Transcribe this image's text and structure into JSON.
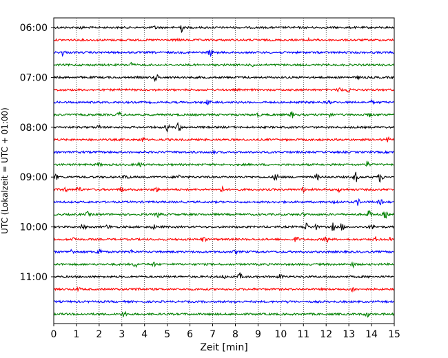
{
  "chart_data": {
    "type": "line",
    "xlabel": "Zeit  [min]",
    "ylabel": "UTC (Lokalzeit = UTC + 01:00)",
    "xlim": [
      0,
      15
    ],
    "x_ticks": [
      "0",
      "1",
      "2",
      "3",
      "4",
      "5",
      "6",
      "7",
      "8",
      "9",
      "10",
      "11",
      "12",
      "13",
      "14",
      "15"
    ],
    "y_ticks": [
      "06:00",
      "07:00",
      "08:00",
      "09:00",
      "10:00",
      "11:00"
    ],
    "grid": "vertical dotted at each minute",
    "trace_interval_min": 15,
    "colors": [
      "#000000",
      "#ff0000",
      "#0000ff",
      "#008000"
    ],
    "series": [
      {
        "start": "06:00",
        "events": [
          [
            5.6,
            7
          ],
          [
            4.5,
            2
          ],
          [
            1.2,
            1.5
          ]
        ]
      },
      {
        "start": "06:15",
        "events": [
          [
            11.2,
            1.5
          ],
          [
            5.5,
            1
          ]
        ]
      },
      {
        "start": "06:30",
        "events": [
          [
            0.4,
            4
          ],
          [
            6.9,
            5
          ]
        ]
      },
      {
        "start": "06:45",
        "events": [
          [
            3.4,
            3
          ],
          [
            8.8,
            2
          ]
        ]
      },
      {
        "start": "07:00",
        "events": [
          [
            4.5,
            5
          ],
          [
            13.4,
            1.5
          ]
        ]
      },
      {
        "start": "07:15",
        "events": [
          [
            12.6,
            3
          ],
          [
            13.0,
            3.5
          ]
        ]
      },
      {
        "start": "07:30",
        "events": [
          [
            6.8,
            4
          ],
          [
            12.1,
            2
          ],
          [
            14.0,
            2
          ]
        ]
      },
      {
        "start": "07:45",
        "events": [
          [
            2.9,
            3.5
          ],
          [
            10.5,
            4
          ],
          [
            12.2,
            2.5
          ],
          [
            13.9,
            2.5
          ],
          [
            9.0,
            2
          ]
        ]
      },
      {
        "start": "08:00",
        "events": [
          [
            5.0,
            5
          ],
          [
            5.5,
            6
          ],
          [
            2.0,
            2
          ]
        ]
      },
      {
        "start": "08:15",
        "events": [
          [
            3.9,
            3.5
          ],
          [
            14.7,
            3
          ]
        ]
      },
      {
        "start": "08:30",
        "events": [
          [
            7.0,
            1.5
          ]
        ]
      },
      {
        "start": "08:45",
        "events": [
          [
            3.8,
            3.5
          ],
          [
            13.8,
            4
          ],
          [
            2.0,
            2
          ]
        ]
      },
      {
        "start": "09:00",
        "events": [
          [
            0.1,
            3
          ],
          [
            3.2,
            4
          ],
          [
            5.5,
            3
          ],
          [
            9.8,
            5
          ],
          [
            11.6,
            4
          ],
          [
            13.3,
            7
          ],
          [
            14.4,
            7
          ]
        ]
      },
      {
        "start": "09:15",
        "events": [
          [
            0.5,
            3
          ],
          [
            1.1,
            4
          ],
          [
            3.0,
            4
          ],
          [
            4.5,
            3
          ],
          [
            7.4,
            3.5
          ],
          [
            11.0,
            3
          ],
          [
            12.6,
            3
          ]
        ]
      },
      {
        "start": "09:30",
        "events": [
          [
            12.4,
            3
          ],
          [
            13.4,
            4
          ],
          [
            14.4,
            3
          ]
        ]
      },
      {
        "start": "09:45",
        "events": [
          [
            1.5,
            3
          ],
          [
            4.6,
            3.5
          ],
          [
            13.9,
            5.5
          ],
          [
            14.6,
            5
          ],
          [
            11.0,
            2
          ]
        ]
      },
      {
        "start": "10:00",
        "events": [
          [
            1.3,
            4
          ],
          [
            2.4,
            3
          ],
          [
            4.4,
            3
          ],
          [
            11.1,
            6
          ],
          [
            11.5,
            5
          ],
          [
            12.3,
            5
          ],
          [
            12.7,
            5
          ],
          [
            14.0,
            3.5
          ]
        ]
      },
      {
        "start": "10:15",
        "events": [
          [
            0.9,
            3.5
          ],
          [
            6.6,
            3.5
          ],
          [
            10.7,
            4
          ],
          [
            12.0,
            5
          ],
          [
            14.2,
            3
          ],
          [
            14.8,
            2.5
          ]
        ]
      },
      {
        "start": "10:30",
        "events": [
          [
            0.8,
            3
          ],
          [
            2.0,
            6
          ],
          [
            3.4,
            2
          ],
          [
            8.0,
            2
          ]
        ]
      },
      {
        "start": "10:45",
        "events": [
          [
            3.6,
            3.5
          ],
          [
            4.4,
            2.5
          ],
          [
            13.2,
            3
          ]
        ]
      },
      {
        "start": "11:00",
        "events": [
          [
            8.2,
            4
          ],
          [
            10.0,
            3.5
          ],
          [
            7.5,
            2
          ]
        ]
      },
      {
        "start": "11:15",
        "events": [
          [
            3.7,
            3.5
          ],
          [
            13.2,
            4
          ],
          [
            1.1,
            2
          ]
        ]
      },
      {
        "start": "11:30",
        "events": [
          [
            8.0,
            2
          ],
          [
            10.4,
            1.5
          ]
        ]
      },
      {
        "start": "11:45",
        "events": [
          [
            3.1,
            5
          ],
          [
            13.8,
            4
          ]
        ]
      }
    ]
  }
}
